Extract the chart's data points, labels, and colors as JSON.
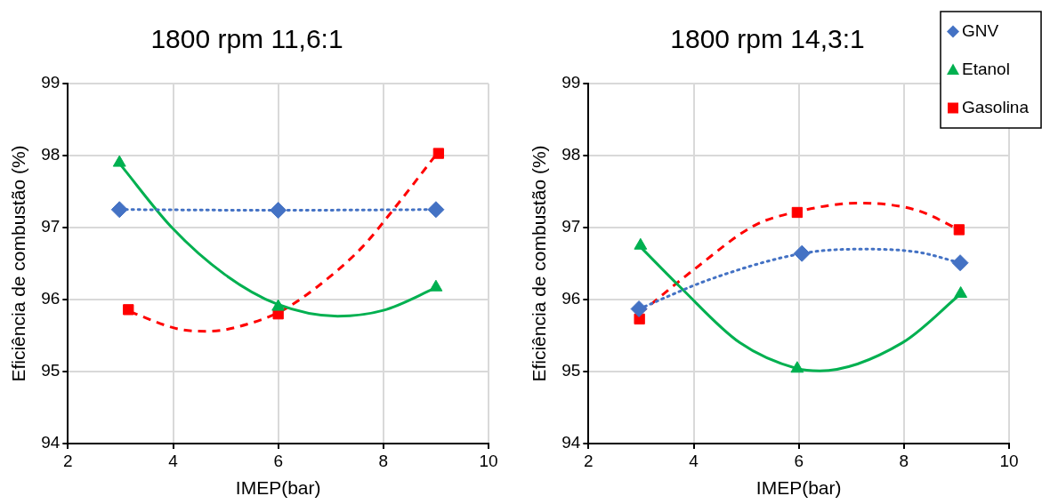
{
  "chart_data": [
    {
      "type": "scatter",
      "title": "1800 rpm 11,6:1",
      "xlabel": "IMEP(bar)",
      "ylabel": "Eficiência de combustão (%)",
      "xlim": [
        2,
        10
      ],
      "xticks": [
        2,
        4,
        6,
        8,
        10
      ],
      "ylim": [
        94,
        99
      ],
      "yticks": [
        94,
        95,
        96,
        97,
        98,
        99
      ],
      "grid": true,
      "series": [
        {
          "color": "#4472c4",
          "marker": "diamond",
          "x": [
            2.98,
            6.0,
            9.0
          ],
          "values": [
            97.25,
            97.24,
            97.25
          ]
        },
        {
          "color": "#00b050",
          "marker": "triangle",
          "x": [
            2.98,
            6.0,
            9.0
          ],
          "values": [
            97.9,
            95.9,
            96.17
          ]
        },
        {
          "color": "#ff0000",
          "marker": "square",
          "x": [
            3.15,
            6.0,
            9.05
          ],
          "values": [
            95.86,
            95.8,
            98.03
          ]
        },
        {
          "type": "line",
          "color": "#4472c4",
          "line_style": "dotted",
          "marker": "none",
          "x": [
            2.98,
            6.0,
            9.0
          ],
          "values": [
            97.25,
            97.24,
            97.25
          ]
        },
        {
          "type": "line",
          "color": "#00b050",
          "line_style": "solid",
          "marker": "none",
          "x": [
            2.98,
            3.99,
            4.98,
            5.97,
            7.13,
            8.0,
            9.02
          ],
          "values": [
            97.89,
            96.99,
            96.35,
            95.94,
            95.77,
            95.85,
            96.17
          ]
        },
        {
          "type": "line",
          "color": "#ff0000",
          "line_style": "dashed",
          "marker": "none",
          "x": [
            3.18,
            4.11,
            4.69,
            5.51,
            6.03,
            6.73,
            7.6,
            8.18,
            9.0
          ],
          "values": [
            95.83,
            95.59,
            95.56,
            95.68,
            95.83,
            96.17,
            96.73,
            97.24,
            98.01
          ]
        }
      ]
    },
    {
      "type": "scatter",
      "title": "1800 rpm 14,3:1",
      "xlabel": "IMEP(bar)",
      "ylabel": "Eficiência de combustão (%)",
      "xlim": [
        2,
        10
      ],
      "xticks": [
        2,
        4,
        6,
        8,
        10
      ],
      "ylim": [
        94,
        99
      ],
      "yticks": [
        94,
        95,
        96,
        97,
        98,
        99
      ],
      "grid": true,
      "legend": "top right",
      "series": [
        {
          "name": "GNV",
          "color": "#4472c4",
          "marker": "diamond",
          "x": [
            2.96,
            6.06,
            9.07
          ],
          "values": [
            95.87,
            96.64,
            96.51
          ]
        },
        {
          "name": "Etanol",
          "color": "#00b050",
          "marker": "triangle",
          "x": [
            2.99,
            5.97,
            9.08
          ],
          "values": [
            96.75,
            95.04,
            96.08
          ]
        },
        {
          "name": "Gasolina",
          "color": "#ff0000",
          "marker": "square",
          "x": [
            2.97,
            5.97,
            9.05
          ],
          "values": [
            95.73,
            97.21,
            96.97
          ]
        },
        {
          "type": "line",
          "color": "#4472c4",
          "line_style": "dotted",
          "marker": "none",
          "x": [
            2.96,
            4.31,
            6.06,
            7.13,
            8.25,
            9.07
          ],
          "values": [
            95.87,
            96.28,
            96.64,
            96.7,
            96.66,
            96.51
          ]
        },
        {
          "type": "line",
          "color": "#00b050",
          "line_style": "solid",
          "marker": "none",
          "x": [
            2.99,
            3.75,
            4.88,
            5.97,
            6.4,
            7.97,
            9.08
          ],
          "values": [
            96.73,
            96.17,
            95.4,
            95.04,
            95.01,
            95.4,
            96.08
          ]
        },
        {
          "type": "line",
          "color": "#ff0000",
          "line_style": "dashed",
          "marker": "none",
          "x": [
            2.98,
            4.03,
            5.16,
            5.97,
            7.13,
            8.25,
            9.05
          ],
          "values": [
            95.81,
            96.43,
            97.03,
            97.22,
            97.34,
            97.24,
            96.97
          ]
        }
      ]
    }
  ]
}
